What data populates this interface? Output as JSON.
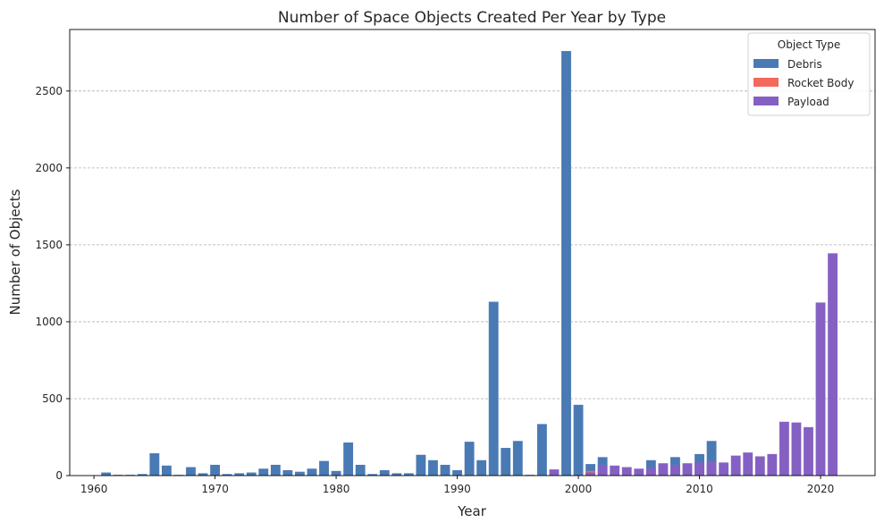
{
  "chart_data": {
    "type": "bar",
    "title": "Number of Space Objects Created Per Year by Type",
    "xlabel": "Year",
    "ylabel": "Number of Objects",
    "xlim": [
      1958,
      2024.5
    ],
    "ylim": [
      0,
      2900
    ],
    "xticks": [
      1960,
      1970,
      1980,
      1990,
      2000,
      2010,
      2020
    ],
    "yticks": [
      0,
      500,
      1000,
      1500,
      2000,
      2500
    ],
    "grid": "y-dashed",
    "legend": {
      "title": "Object Type",
      "placement": "top-right"
    },
    "colors": {
      "Debris": "#4a7ab4",
      "Rocket Body": "#f4695b",
      "Payload": "#8560c3"
    },
    "series": [
      {
        "name": "Debris",
        "color": "#4a7ab4",
        "points": [
          [
            1961,
            20
          ],
          [
            1962,
            5
          ],
          [
            1963,
            5
          ],
          [
            1964,
            10
          ],
          [
            1965,
            145
          ],
          [
            1966,
            65
          ],
          [
            1967,
            5
          ],
          [
            1968,
            55
          ],
          [
            1969,
            15
          ],
          [
            1970,
            70
          ],
          [
            1971,
            10
          ],
          [
            1972,
            15
          ],
          [
            1973,
            20
          ],
          [
            1974,
            45
          ],
          [
            1975,
            70
          ],
          [
            1976,
            35
          ],
          [
            1977,
            25
          ],
          [
            1978,
            45
          ],
          [
            1979,
            95
          ],
          [
            1980,
            30
          ],
          [
            1981,
            215
          ],
          [
            1982,
            70
          ],
          [
            1983,
            10
          ],
          [
            1984,
            35
          ],
          [
            1985,
            15
          ],
          [
            1986,
            15
          ],
          [
            1987,
            135
          ],
          [
            1988,
            100
          ],
          [
            1989,
            70
          ],
          [
            1990,
            35
          ],
          [
            1991,
            220
          ],
          [
            1992,
            100
          ],
          [
            1993,
            1130
          ],
          [
            1994,
            180
          ],
          [
            1995,
            225
          ],
          [
            1996,
            5
          ],
          [
            1997,
            335
          ],
          [
            1999,
            2760
          ],
          [
            2000,
            460
          ],
          [
            2001,
            75
          ],
          [
            2002,
            120
          ],
          [
            2006,
            100
          ],
          [
            2008,
            120
          ],
          [
            2010,
            140
          ],
          [
            2011,
            225
          ]
        ]
      },
      {
        "name": "Rocket Body",
        "color": "#f4695b",
        "points": [
          [
            2001,
            30
          ]
        ]
      },
      {
        "name": "Payload",
        "color": "#8560c3",
        "points": [
          [
            1998,
            40
          ],
          [
            2001,
            20
          ],
          [
            2002,
            70
          ],
          [
            2003,
            65
          ],
          [
            2004,
            55
          ],
          [
            2005,
            45
          ],
          [
            2006,
            50
          ],
          [
            2007,
            80
          ],
          [
            2008,
            70
          ],
          [
            2009,
            80
          ],
          [
            2010,
            85
          ],
          [
            2011,
            90
          ],
          [
            2012,
            85
          ],
          [
            2013,
            130
          ],
          [
            2014,
            150
          ],
          [
            2015,
            125
          ],
          [
            2016,
            140
          ],
          [
            2017,
            350
          ],
          [
            2018,
            345
          ],
          [
            2019,
            315
          ],
          [
            2020,
            1125
          ],
          [
            2021,
            1445
          ]
        ]
      }
    ]
  }
}
